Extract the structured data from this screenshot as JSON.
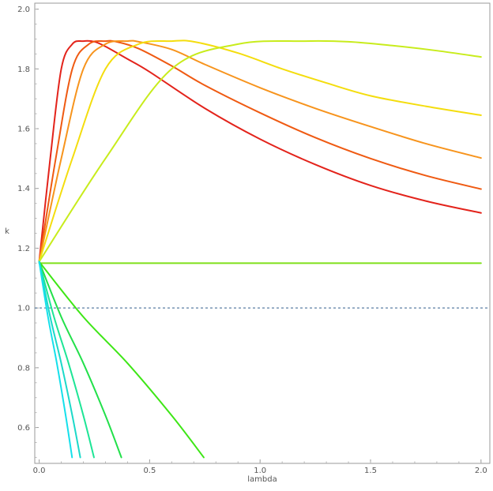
{
  "chart_data": {
    "type": "line",
    "title": "",
    "xlabel": "lambda",
    "ylabel": "k",
    "xlim": [
      -0.02,
      2.04
    ],
    "ylim": [
      0.48,
      2.02
    ],
    "xticks": [
      0.0,
      0.5,
      1.0,
      1.5,
      2.0
    ],
    "xtick_labels": [
      "0.0",
      "0.5",
      "1.0",
      "1.5",
      "2.0"
    ],
    "yticks": [
      0.6,
      0.8,
      1.0,
      1.2,
      1.4,
      1.6,
      1.8,
      2.0
    ],
    "ytick_labels": [
      "0.6",
      "0.8",
      "1.0",
      "1.2",
      "1.4",
      "1.6",
      "1.8",
      "2.0"
    ],
    "frame": true,
    "grid": false,
    "reference_line": {
      "y": 1.0,
      "style": "dashed",
      "color": "#5b7fa3"
    },
    "series": [
      {
        "color": "#e3231b",
        "x": [
          0.0,
          0.05,
          0.1,
          0.15,
          0.2,
          0.25,
          0.3,
          0.4,
          0.5,
          0.75,
          1.0,
          1.25,
          1.5,
          1.75,
          2.0
        ],
        "y": [
          1.155,
          1.5,
          1.8,
          1.883,
          1.893,
          1.891,
          1.875,
          1.833,
          1.79,
          1.668,
          1.565,
          1.48,
          1.41,
          1.358,
          1.318
        ]
      },
      {
        "color": "#ef5a12",
        "x": [
          0.0,
          0.075,
          0.15,
          0.225,
          0.3,
          0.35,
          0.45,
          0.6,
          0.75,
          1.0,
          1.25,
          1.5,
          1.75,
          2.0
        ],
        "y": [
          1.155,
          1.5,
          1.8,
          1.883,
          1.893,
          1.891,
          1.868,
          1.81,
          1.745,
          1.653,
          1.57,
          1.5,
          1.443,
          1.398
        ]
      },
      {
        "color": "#f7941d",
        "x": [
          0.0,
          0.1,
          0.2,
          0.3,
          0.4,
          0.45,
          0.6,
          0.75,
          1.0,
          1.25,
          1.5,
          1.75,
          2.0
        ],
        "y": [
          1.155,
          1.5,
          1.8,
          1.883,
          1.893,
          1.891,
          1.865,
          1.815,
          1.737,
          1.668,
          1.607,
          1.55,
          1.502
        ]
      },
      {
        "color": "#f4dd0e",
        "x": [
          0.0,
          0.15,
          0.3,
          0.45,
          0.6,
          0.7,
          0.9,
          1.1,
          1.3,
          1.5,
          1.75,
          2.0
        ],
        "y": [
          1.155,
          1.5,
          1.8,
          1.883,
          1.893,
          1.891,
          1.853,
          1.8,
          1.753,
          1.71,
          1.675,
          1.645
        ]
      },
      {
        "color": "#c8ec1c",
        "x": [
          0.0,
          0.3,
          0.6,
          0.9,
          1.2,
          1.4,
          1.6,
          1.8,
          2.0
        ],
        "y": [
          1.155,
          1.5,
          1.8,
          1.883,
          1.893,
          1.891,
          1.878,
          1.861,
          1.84
        ]
      },
      {
        "color": "#7fe01a",
        "x": [
          0.0,
          2.0
        ],
        "y": [
          1.15,
          1.15
        ]
      },
      {
        "color": "#3ee616",
        "x": [
          0.0,
          0.2,
          0.4,
          0.6,
          0.745
        ],
        "y": [
          1.155,
          0.97,
          0.815,
          0.64,
          0.5
        ]
      },
      {
        "color": "#22e04a",
        "x": [
          0.0,
          0.1,
          0.2,
          0.3,
          0.372
        ],
        "y": [
          1.155,
          0.97,
          0.815,
          0.64,
          0.5
        ]
      },
      {
        "color": "#1ee596",
        "x": [
          0.0,
          0.067,
          0.133,
          0.2,
          0.248
        ],
        "y": [
          1.155,
          0.97,
          0.815,
          0.64,
          0.5
        ]
      },
      {
        "color": "#1bd9c9",
        "x": [
          0.0,
          0.05,
          0.1,
          0.15,
          0.186
        ],
        "y": [
          1.155,
          0.97,
          0.815,
          0.64,
          0.5
        ]
      },
      {
        "color": "#15e0eb",
        "x": [
          0.0,
          0.04,
          0.08,
          0.12,
          0.149
        ],
        "y": [
          1.155,
          0.97,
          0.815,
          0.64,
          0.5
        ]
      }
    ]
  }
}
